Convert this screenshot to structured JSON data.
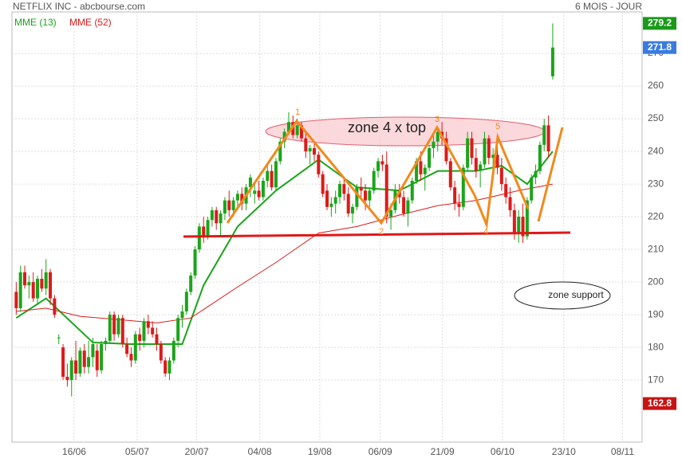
{
  "chart_data": {
    "type": "candlestick",
    "title": "NETFLIX INC - abcbourse.com",
    "subtitle": "6 MOIS - JOUR",
    "up_color": "#1aa51a",
    "down_color": "#dd1a1a",
    "candles": [
      [
        197,
        200,
        190,
        192
      ],
      [
        192,
        205,
        191,
        203
      ],
      [
        203,
        205,
        198,
        199
      ],
      [
        199,
        202,
        195,
        200
      ],
      [
        200,
        203,
        194,
        195
      ],
      [
        195,
        202,
        193,
        201
      ],
      [
        201,
        204,
        197,
        198
      ],
      [
        198,
        207,
        196,
        203
      ],
      [
        203,
        204,
        193,
        195
      ],
      [
        195,
        196,
        189,
        190
      ],
      [
        183,
        184,
        181,
        183
      ],
      [
        180,
        181,
        170,
        171
      ],
      [
        171,
        175,
        168,
        170
      ],
      [
        170,
        177,
        165,
        176
      ],
      [
        176,
        182,
        170,
        172
      ],
      [
        172,
        180,
        171,
        179
      ],
      [
        179,
        181,
        172,
        174
      ],
      [
        174,
        182,
        172,
        177
      ],
      [
        177,
        183,
        174,
        181
      ],
      [
        179,
        181,
        171,
        173
      ],
      [
        173,
        182,
        172,
        181
      ],
      [
        181,
        183,
        179,
        182
      ],
      [
        182,
        191,
        181,
        190
      ],
      [
        190,
        191,
        182,
        184
      ],
      [
        184,
        190,
        183,
        189
      ],
      [
        189,
        190,
        180,
        181
      ],
      [
        181,
        183,
        177,
        178
      ],
      [
        178,
        180,
        174,
        176
      ],
      [
        176,
        185,
        175,
        184
      ],
      [
        184,
        186,
        179,
        182
      ],
      [
        182,
        189,
        180,
        188
      ],
      [
        188,
        190,
        184,
        186
      ],
      [
        186,
        188,
        183,
        184
      ],
      [
        184,
        186,
        179,
        181
      ],
      [
        181,
        182,
        175,
        176
      ],
      [
        176,
        177,
        171,
        172
      ],
      [
        172,
        177,
        170,
        176
      ],
      [
        176,
        183,
        175,
        182
      ],
      [
        182,
        190,
        180,
        189
      ],
      [
        189,
        193,
        186,
        191
      ],
      [
        191,
        198,
        190,
        197
      ],
      [
        197,
        203,
        196,
        202
      ],
      [
        202,
        211,
        201,
        210
      ],
      [
        210,
        218,
        209,
        217
      ],
      [
        217,
        220,
        212,
        214
      ],
      [
        214,
        220,
        213,
        219
      ],
      [
        219,
        223,
        217,
        222
      ],
      [
        222,
        223,
        216,
        218
      ],
      [
        218,
        222,
        214,
        221
      ],
      [
        221,
        226,
        219,
        225
      ],
      [
        225,
        228,
        220,
        222
      ],
      [
        222,
        226,
        220,
        225
      ],
      [
        225,
        228,
        223,
        227
      ],
      [
        227,
        229,
        222,
        224
      ],
      [
        224,
        230,
        222,
        229
      ],
      [
        229,
        233,
        226,
        232
      ],
      [
        227,
        230,
        224,
        228
      ],
      [
        228,
        231,
        225,
        226
      ],
      [
        226,
        232,
        225,
        231
      ],
      [
        231,
        236,
        229,
        234
      ],
      [
        234,
        236,
        228,
        229
      ],
      [
        229,
        238,
        228,
        237
      ],
      [
        237,
        244,
        236,
        243
      ],
      [
        243,
        247,
        241,
        246
      ],
      [
        246,
        252,
        245,
        249
      ],
      [
        249,
        251,
        244,
        245
      ],
      [
        245,
        250,
        244,
        248
      ],
      [
        248,
        249,
        243,
        244
      ],
      [
        244,
        246,
        238,
        240
      ],
      [
        240,
        242,
        236,
        241
      ],
      [
        241,
        243,
        237,
        239
      ],
      [
        239,
        240,
        232,
        233
      ],
      [
        233,
        234,
        226,
        227
      ],
      [
        228,
        230,
        222,
        223
      ],
      [
        223,
        226,
        220,
        224
      ],
      [
        224,
        228,
        221,
        226
      ],
      [
        226,
        231,
        224,
        230
      ],
      [
        230,
        232,
        225,
        227
      ],
      [
        227,
        229,
        220,
        221
      ],
      [
        221,
        224,
        218,
        223
      ],
      [
        223,
        230,
        222,
        229
      ],
      [
        229,
        232,
        226,
        228
      ],
      [
        228,
        230,
        222,
        225
      ],
      [
        225,
        229,
        223,
        228
      ],
      [
        228,
        235,
        227,
        234
      ],
      [
        234,
        238,
        232,
        237
      ],
      [
        237,
        239,
        234,
        236
      ],
      [
        236,
        240,
        218,
        220
      ],
      [
        220,
        224,
        216,
        222
      ],
      [
        222,
        230,
        221,
        228
      ],
      [
        228,
        230,
        224,
        226
      ],
      [
        226,
        228,
        220,
        221
      ],
      [
        221,
        226,
        217,
        225
      ],
      [
        225,
        232,
        224,
        231
      ],
      [
        231,
        238,
        230,
        237
      ],
      [
        237,
        240,
        231,
        233
      ],
      [
        233,
        236,
        228,
        235
      ],
      [
        235,
        242,
        234,
        241
      ],
      [
        241,
        245,
        238,
        243
      ],
      [
        243,
        247,
        240,
        246
      ],
      [
        246,
        249,
        242,
        244
      ],
      [
        244,
        246,
        236,
        237
      ],
      [
        237,
        238,
        228,
        229
      ],
      [
        229,
        231,
        222,
        224
      ],
      [
        224,
        227,
        220,
        223
      ],
      [
        223,
        236,
        222,
        235
      ],
      [
        235,
        246,
        234,
        244
      ],
      [
        244,
        246,
        236,
        238
      ],
      [
        238,
        241,
        232,
        234
      ],
      [
        234,
        237,
        229,
        236
      ],
      [
        236,
        246,
        235,
        244
      ],
      [
        244,
        245,
        236,
        238
      ],
      [
        238,
        241,
        234,
        239
      ],
      [
        239,
        242,
        233,
        235
      ],
      [
        235,
        238,
        228,
        230
      ],
      [
        230,
        232,
        224,
        226
      ],
      [
        226,
        229,
        220,
        222
      ],
      [
        222,
        224,
        213,
        215
      ],
      [
        215,
        222,
        212,
        220
      ],
      [
        220,
        224,
        212,
        214
      ],
      [
        214,
        226,
        213,
        225
      ],
      [
        225,
        233,
        224,
        232
      ],
      [
        232,
        236,
        230,
        234
      ],
      [
        234,
        243,
        233,
        242
      ],
      [
        242,
        250,
        240,
        248
      ],
      [
        248,
        251,
        238,
        240
      ],
      [
        263,
        279.2,
        262,
        271.8
      ]
    ],
    "series": [
      {
        "name": "MME (13)",
        "color": "#1aa51a",
        "x": [
          0,
          7,
          18,
          27,
          39,
          44,
          52,
          61,
          71,
          80,
          90,
          99,
          108,
          114,
          120,
          126
        ],
        "values": [
          189,
          195,
          181.5,
          181,
          181,
          199,
          217,
          228,
          237.5,
          229,
          228,
          234,
          234,
          235.6,
          230,
          240
        ]
      },
      {
        "name": "MME (52)",
        "color": "#dd1a1a",
        "x": [
          0,
          7,
          15,
          33,
          41,
          52,
          61,
          71,
          80,
          90,
          99,
          108,
          118,
          126
        ],
        "values": [
          191,
          192,
          189.5,
          187.5,
          189,
          198.5,
          206,
          215,
          217,
          220.5,
          223.4,
          225,
          228,
          230
        ]
      }
    ],
    "xlim": [
      -1,
      147
    ],
    "xticks": [
      {
        "value": 13.6,
        "label": "16/06"
      },
      {
        "value": 28.4,
        "label": "05/07"
      },
      {
        "value": 42.4,
        "label": "20/07"
      },
      {
        "value": 57.2,
        "label": "04/08"
      },
      {
        "value": 71.3,
        "label": "19/08"
      },
      {
        "value": 85.5,
        "label": "06/09"
      },
      {
        "value": 100.1,
        "label": "21/09"
      },
      {
        "value": 114.2,
        "label": "06/10"
      },
      {
        "value": 128.6,
        "label": "23/10"
      },
      {
        "value": 142.4,
        "label": "08/11"
      }
    ],
    "ylim": [
      151,
      282.7
    ],
    "yticks": [
      170,
      180,
      190,
      200,
      210,
      220,
      230,
      240,
      250,
      260,
      270
    ],
    "grid": true,
    "price_labels": [
      {
        "value": 279.2,
        "color": "#1a9a1a"
      },
      {
        "value": 271.8,
        "color": "#3a7be0"
      },
      {
        "value": 162.8,
        "color": "#c81414"
      }
    ],
    "annotations": [
      "1",
      "2",
      "3",
      "4",
      "5",
      "zone 4 x top",
      "zone support"
    ]
  }
}
